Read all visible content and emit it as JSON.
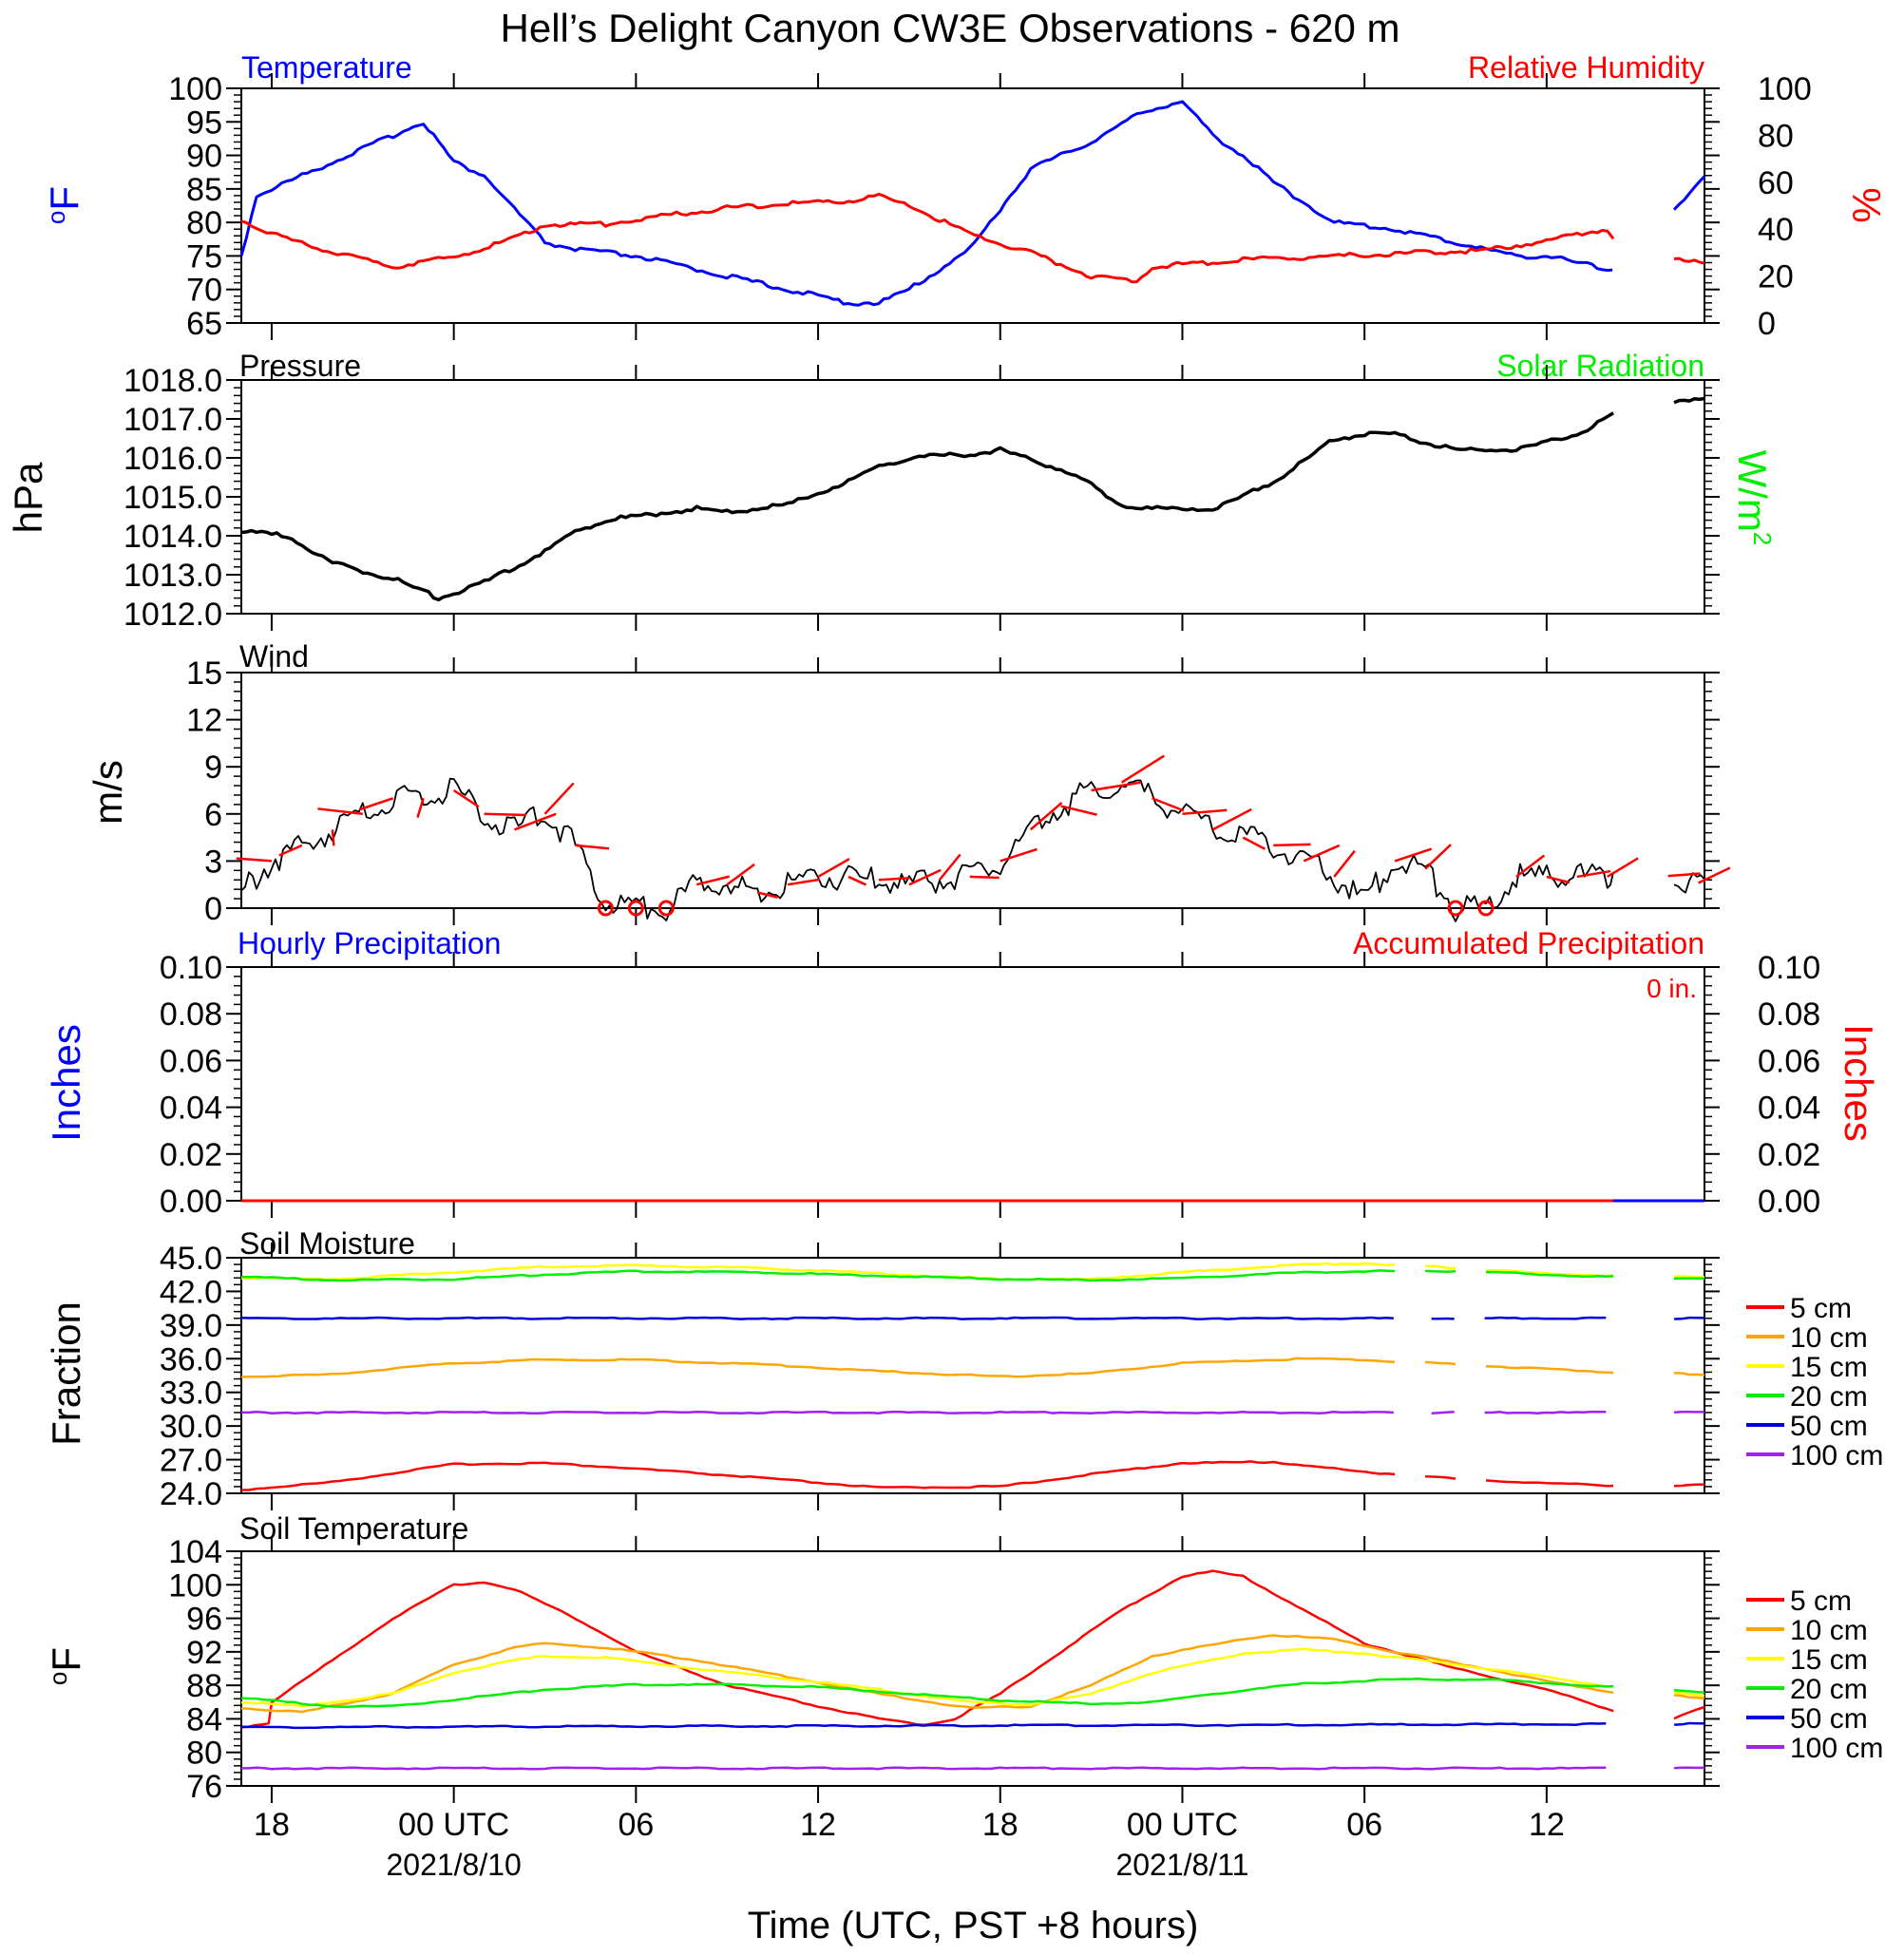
{
  "title": "Hell’s Delight Canyon CW3E Observations - 620 m",
  "colors": {
    "temperature": "#0000ff",
    "humidity": "#ff0000",
    "pressure": "#000000",
    "solar": "#00ee00",
    "wind": "#000000",
    "barb": "#ff0000",
    "hourly_precip": "#0000ff",
    "accum_precip": "#ff0000"
  },
  "time_axis": {
    "xlabel": "Time (UTC, PST +8 hours)",
    "range_hours": [
      -7,
      41.2
    ],
    "ticks": [
      {
        "h": -6,
        "label": "18",
        "sub": ""
      },
      {
        "h": 0,
        "label": "00 UTC",
        "sub": "2021/8/10"
      },
      {
        "h": 6,
        "label": "06",
        "sub": ""
      },
      {
        "h": 12,
        "label": "12",
        "sub": ""
      },
      {
        "h": 18,
        "label": "18",
        "sub": ""
      },
      {
        "h": 24,
        "label": "00 UTC",
        "sub": "2021/8/11"
      },
      {
        "h": 30,
        "label": "06",
        "sub": ""
      },
      {
        "h": 36,
        "label": "12",
        "sub": ""
      }
    ]
  },
  "legend_depths": [
    "5 cm",
    "10 cm",
    "15 cm",
    "20 cm",
    "50 cm",
    "100 cm"
  ],
  "legend_colors": [
    "#ff0000",
    "#ffa500",
    "#ffff00",
    "#00ee00",
    "#0000dd",
    "#a020f0"
  ],
  "panels": {
    "temp_rh": {
      "left_title": "Temperature",
      "right_title": "Relative Humidity",
      "left_ylabel": "oF",
      "right_ylabel": "%",
      "left_ticks": [
        "100",
        "95",
        "90",
        "85",
        "80",
        "75",
        "70",
        "65"
      ],
      "right_ticks": [
        "100",
        "80",
        "60",
        "40",
        "20",
        "0"
      ]
    },
    "pressure": {
      "left_title": "Pressure",
      "right_title": "Solar Radiation",
      "left_ylabel": "hPa",
      "right_ylabel": "W/m2",
      "left_ticks": [
        "1018.0",
        "1017.0",
        "1016.0",
        "1015.0",
        "1014.0",
        "1013.0",
        "1012.0"
      ]
    },
    "wind": {
      "left_title": "Wind",
      "left_ylabel": "m/s",
      "left_ticks": [
        "15",
        "12",
        "9",
        "6",
        "3",
        "0"
      ]
    },
    "precip": {
      "left_title": "Hourly Precipitation",
      "right_title": "Accumulated Precipitation",
      "total": "0 in.",
      "left_ylabel": "Inches",
      "right_ylabel": "Inches",
      "left_ticks": [
        "0.10",
        "0.08",
        "0.06",
        "0.04",
        "0.02",
        "0.00"
      ],
      "right_ticks": [
        "0.10",
        "0.08",
        "0.06",
        "0.04",
        "0.02",
        "0.00"
      ]
    },
    "soil_moisture": {
      "left_title": "Soil Moisture",
      "left_ylabel": "Fraction",
      "left_ticks": [
        "45.0",
        "42.0",
        "39.0",
        "36.0",
        "33.0",
        "30.0",
        "27.0",
        "24.0"
      ]
    },
    "soil_temp": {
      "left_title": "Soil Temperature",
      "left_ylabel": "oF",
      "left_ticks": [
        "104",
        "100",
        "96",
        "92",
        "88",
        "84",
        "80",
        "76"
      ]
    }
  },
  "chart_data": [
    {
      "type": "line",
      "title": "Temperature",
      "ylabel": "oF",
      "ylim": [
        65,
        100
      ],
      "x_units": "hours since 2021/8/10 00 UTC",
      "series": [
        {
          "name": "Temperature",
          "x": [
            -7,
            -6.5,
            -5,
            -3,
            -1.5,
            -1,
            0,
            1,
            2,
            3,
            4,
            6,
            8,
            10,
            12,
            13,
            14,
            15,
            17,
            18,
            19,
            21,
            22.5,
            23,
            24,
            25,
            26,
            27,
            29,
            31,
            32,
            34,
            35,
            36,
            37,
            38,
            39,
            40.2,
            41.2
          ],
          "y": [
            75,
            84,
            87,
            91,
            94,
            95,
            89,
            87,
            82,
            77,
            76,
            75,
            73,
            71,
            69,
            68,
            68,
            70,
            76,
            82,
            88,
            92,
            96,
            97,
            98,
            93,
            90,
            86,
            80,
            79,
            78,
            76,
            75,
            75,
            74,
            73,
            73,
            82,
            87
          ],
          "gaps": [
            [
              38.2,
              40.2
            ]
          ]
        },
        {
          "name": "Relative Humidity",
          "axis": "right",
          "ylim": [
            0,
            100
          ],
          "x": [
            -7,
            -6,
            -4,
            -2,
            0,
            2,
            3,
            5,
            7,
            9,
            11,
            13,
            14,
            15,
            17,
            19,
            21,
            22.5,
            23,
            24,
            26,
            28,
            30,
            32,
            34,
            36,
            37,
            38,
            38.2,
            40.2,
            41.2
          ],
          "y": [
            44,
            38,
            30,
            24,
            28,
            36,
            42,
            42,
            46,
            49,
            51,
            52,
            54,
            50,
            38,
            30,
            20,
            18,
            24,
            25,
            27,
            28,
            29,
            30,
            31,
            35,
            38,
            40,
            36,
            28,
            25
          ],
          "gaps": [
            [
              38.2,
              40.2
            ]
          ]
        }
      ]
    },
    {
      "type": "line",
      "title": "Pressure",
      "ylabel": "hPa",
      "ylim": [
        1012.0,
        1018.0
      ],
      "series": [
        {
          "name": "Pressure",
          "x": [
            -7,
            -5.5,
            -4,
            -2,
            -0.5,
            1,
            2,
            3,
            4,
            5,
            6,
            7,
            8,
            9,
            11,
            13,
            14,
            15,
            17,
            18,
            20,
            21,
            22,
            23,
            25,
            26,
            27,
            28,
            29,
            30,
            31,
            33,
            35,
            37,
            38.2,
            40.2,
            41.2
          ],
          "y": [
            1014.1,
            1014.0,
            1013.3,
            1012.9,
            1012.4,
            1012.8,
            1013.2,
            1013.6,
            1014.1,
            1014.4,
            1014.5,
            1014.6,
            1014.7,
            1014.6,
            1014.8,
            1015.4,
            1015.8,
            1016.0,
            1016.1,
            1016.2,
            1015.7,
            1015.3,
            1014.8,
            1014.7,
            1014.7,
            1015.0,
            1015.4,
            1015.9,
            1016.5,
            1016.6,
            1016.6,
            1016.2,
            1016.2,
            1016.6,
            1017.1,
            1017.4,
            1017.5
          ],
          "gaps": [
            [
              38.2,
              40.2
            ]
          ]
        }
      ]
    },
    {
      "type": "line",
      "title": "Wind",
      "ylabel": "m/s",
      "ylim": [
        0,
        15
      ],
      "series": [
        {
          "name": "Wind",
          "x": [
            -7,
            -6,
            -4,
            -2,
            -1,
            0,
            1,
            2,
            3,
            4,
            5,
            6,
            7,
            8,
            9,
            10,
            11,
            12,
            13,
            14,
            15,
            16,
            17,
            18,
            19,
            20,
            21,
            22,
            23,
            24,
            25,
            26,
            27,
            28,
            29,
            30,
            31,
            32,
            33,
            34,
            35,
            36,
            37,
            38,
            38.2,
            40.2,
            41.2
          ],
          "y": [
            1,
            3,
            5,
            7,
            7,
            7.5,
            6,
            5,
            6,
            4,
            0.3,
            0,
            0,
            1.5,
            1.5,
            1,
            1.5,
            2,
            2,
            1.8,
            1.5,
            1.8,
            2,
            3,
            5,
            6.5,
            7.5,
            8,
            7,
            6,
            5,
            4.5,
            4,
            3,
            2,
            0.5,
            3,
            2.5,
            0,
            0,
            2,
            2,
            2,
            2,
            2.5,
            2,
            1.5
          ],
          "gaps": [
            [
              38.2,
              40.2
            ]
          ]
        }
      ]
    },
    {
      "type": "line",
      "title": "Hourly Precipitation",
      "ylabel": "Inches",
      "ylim": [
        0.0,
        0.1
      ],
      "series": [
        {
          "name": "Hourly Precipitation",
          "x": [
            -7,
            41.2
          ],
          "y": [
            0,
            0
          ]
        },
        {
          "name": "Accumulated Precipitation",
          "x": [
            -7,
            41.2
          ],
          "y": [
            0,
            0
          ],
          "gaps": [
            [
              38.2,
              40.2
            ]
          ]
        }
      ]
    },
    {
      "type": "line",
      "title": "Soil Moisture",
      "ylabel": "Fraction",
      "ylim": [
        24.0,
        45.0
      ],
      "series": [
        {
          "name": "5 cm",
          "x": [
            -7,
            -4,
            0,
            3,
            6,
            10,
            14,
            18,
            21,
            24,
            27,
            30,
            33,
            36,
            38.2,
            40.2,
            41.2
          ],
          "y": [
            24.3,
            25,
            26.6,
            26.7,
            26.2,
            25.4,
            24.5,
            24.6,
            25.7,
            26.7,
            26.8,
            25.9,
            25.3,
            24.9,
            24.7,
            24.6,
            24.8
          ],
          "gaps": [
            [
              31,
              32
            ],
            [
              33,
              33.8
            ],
            [
              38.2,
              40.2
            ]
          ]
        },
        {
          "name": "10 cm",
          "x": [
            -7,
            -4,
            0,
            3,
            6,
            10,
            14,
            18,
            21,
            24,
            28,
            30,
            33,
            36,
            38.2,
            40.2,
            41.2
          ],
          "y": [
            34.4,
            34.6,
            35.6,
            35.9,
            35.9,
            35.5,
            34.9,
            34.4,
            34.7,
            35.6,
            36.0,
            35.9,
            35.5,
            35.1,
            34.8,
            34.7,
            34.6
          ],
          "gaps": [
            [
              31,
              32
            ],
            [
              33,
              33.8
            ],
            [
              38.2,
              40.2
            ]
          ]
        },
        {
          "name": "15 cm",
          "x": [
            -7,
            -4,
            0,
            3,
            6,
            10,
            14,
            18,
            21,
            24,
            28,
            30,
            33,
            36,
            38.2,
            40.2,
            41.2
          ],
          "y": [
            43.2,
            43.1,
            43.7,
            44.2,
            44.3,
            44.1,
            43.6,
            43.1,
            43.1,
            43.7,
            44.4,
            44.5,
            44.1,
            43.6,
            43.4,
            43.4,
            43.3
          ],
          "gaps": [
            [
              31,
              32
            ],
            [
              33,
              33.8
            ],
            [
              38.2,
              40.2
            ]
          ]
        },
        {
          "name": "20 cm",
          "x": [
            -7,
            -4,
            0,
            3,
            6,
            10,
            14,
            18,
            21,
            24,
            28,
            30,
            33,
            36,
            38.2,
            40.2,
            41.2
          ],
          "y": [
            43.3,
            43.0,
            43.1,
            43.5,
            43.8,
            43.7,
            43.4,
            43.1,
            43.0,
            43.2,
            43.7,
            43.8,
            43.8,
            43.5,
            43.3,
            43.2,
            43.2
          ],
          "gaps": [
            [
              31,
              32
            ],
            [
              33,
              33.8
            ],
            [
              38.2,
              40.2
            ]
          ]
        },
        {
          "name": "50 cm",
          "x": [
            -7,
            41.2
          ],
          "y": [
            39.6,
            39.6
          ],
          "gaps": [
            [
              31,
              32
            ],
            [
              33,
              33.8
            ],
            [
              38.2,
              40.2
            ]
          ]
        },
        {
          "name": "100 cm",
          "x": [
            -7,
            41.2
          ],
          "y": [
            31.2,
            31.2
          ],
          "gaps": [
            [
              31,
              32
            ],
            [
              33,
              33.8
            ],
            [
              38.2,
              40.2
            ]
          ]
        }
      ]
    },
    {
      "type": "line",
      "title": "Soil Temperature",
      "ylabel": "oF",
      "ylim": [
        76,
        104
      ],
      "series": [
        {
          "name": "5 cm",
          "x": [
            -7,
            -6.1,
            -6,
            -4,
            -2,
            0,
            1,
            2,
            4,
            6,
            9,
            12,
            14,
            15.5,
            16.5,
            18,
            20,
            22,
            24,
            25,
            26,
            28,
            30,
            33,
            36,
            38.2,
            40.2,
            41.2
          ],
          "y": [
            83,
            83.5,
            86,
            91,
            96,
            100,
            100.3,
            99.5,
            96,
            92,
            88,
            85.5,
            84,
            83.3,
            84,
            87,
            92,
            97,
            101,
            101.6,
            101,
            97,
            93,
            90,
            87.5,
            85,
            84,
            85.5
          ],
          "gaps": [
            [
              38.2,
              40.2
            ]
          ]
        },
        {
          "name": "10 cm",
          "x": [
            -7,
            -5,
            -2,
            0,
            2,
            3,
            5,
            8,
            11,
            14,
            17,
            19,
            21,
            23,
            26,
            27,
            29,
            31,
            34,
            36,
            38.2,
            40.2,
            41.2
          ],
          "y": [
            85.3,
            84.8,
            87,
            90.5,
            92.5,
            93,
            92.5,
            91,
            89,
            87,
            85.3,
            85.5,
            88,
            91.5,
            93.5,
            94,
            93.5,
            92,
            90,
            88.5,
            87.2,
            86.8,
            86.5
          ],
          "gaps": [
            [
              38.2,
              40.2
            ]
          ]
        },
        {
          "name": "15 cm",
          "x": [
            -7,
            -5,
            -2,
            0,
            2,
            3,
            5,
            8,
            11,
            14,
            17,
            19,
            21,
            23,
            26,
            28,
            30,
            33,
            36,
            38.2,
            40.2,
            41.2
          ],
          "y": [
            86,
            85.5,
            87,
            89.5,
            91,
            91.5,
            91.3,
            90,
            88.8,
            87.5,
            86,
            85.7,
            87,
            89.5,
            91.8,
            92.3,
            91.8,
            90.5,
            89,
            87.8,
            87.2,
            86.8
          ],
          "gaps": [
            [
              38.2,
              40.2
            ]
          ]
        },
        {
          "name": "20 cm",
          "x": [
            -7,
            -4,
            -2,
            0,
            3,
            6,
            9,
            12,
            15,
            18,
            21,
            23,
            25,
            28,
            31,
            34,
            36,
            38.2,
            40.2,
            41.2
          ],
          "y": [
            86.5,
            85.5,
            85.5,
            86.3,
            87.5,
            88.1,
            88.1,
            87.8,
            87,
            86.2,
            85.8,
            86,
            87,
            88.2,
            88.7,
            88.7,
            88.3,
            87.8,
            87.5,
            87.2
          ],
          "gaps": [
            [
              38.2,
              40.2
            ]
          ]
        },
        {
          "name": "50 cm",
          "x": [
            -7,
            41.2
          ],
          "y": [
            83.0,
            83.4
          ],
          "gaps": [
            [
              38.2,
              40.2
            ]
          ]
        },
        {
          "name": "100 cm",
          "x": [
            -7,
            41.2
          ],
          "y": [
            78.1,
            78.1
          ],
          "gaps": [
            [
              38.2,
              40.2
            ]
          ]
        }
      ]
    }
  ]
}
